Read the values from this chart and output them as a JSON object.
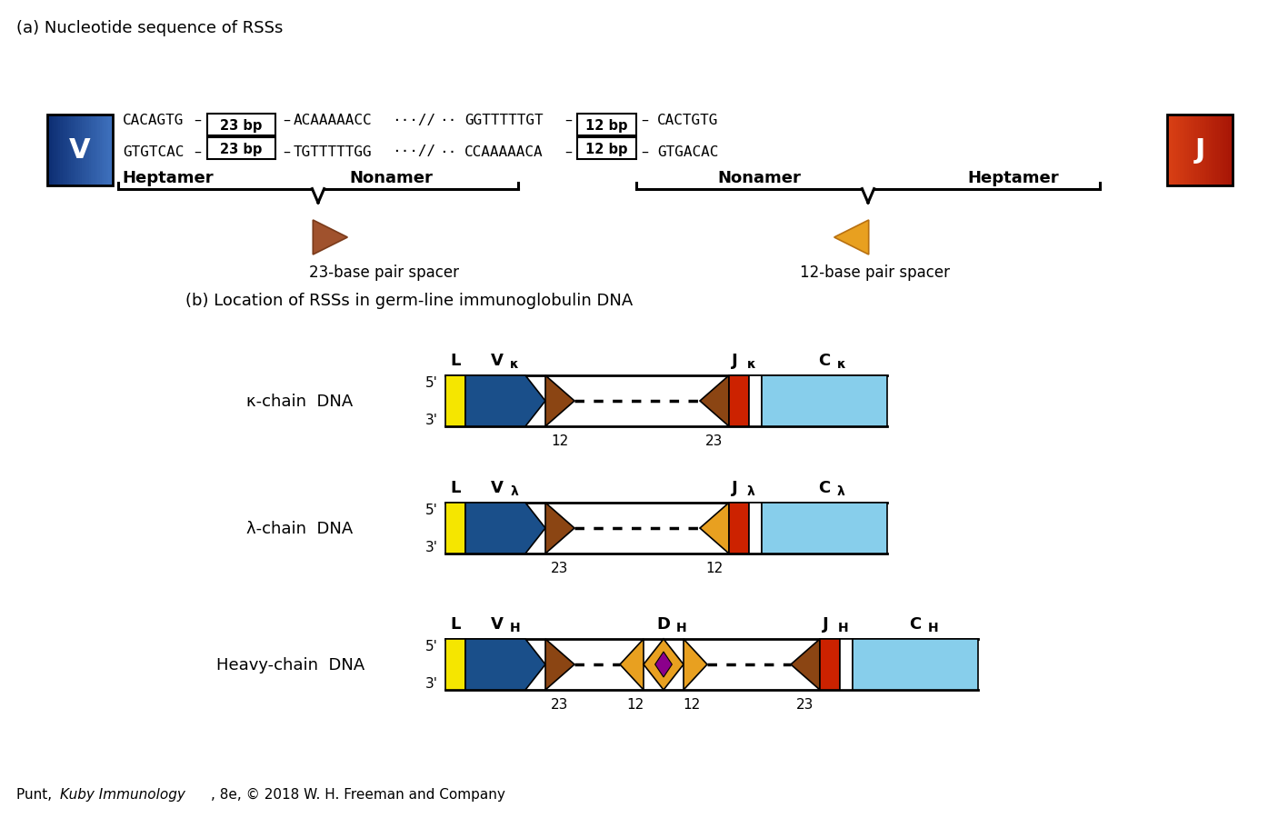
{
  "title_a": "(a) Nucleotide sequence of RSSs",
  "title_b": "(b) Location of RSSs in germ-line immunoglobulin DNA",
  "spacer23_label": "23-base pair spacer",
  "spacer12_label": "12-base pair spacer",
  "color_V_blue": "#1a4f8a",
  "color_J_red": "#cc2200",
  "color_yellow": "#f5e600",
  "color_blue": "#1a4f8a",
  "color_brown": "#8b4513",
  "color_orange": "#e8a020",
  "color_red": "#cc2200",
  "color_lightblue": "#87ceeb",
  "color_purple": "#8b008b",
  "bg_color": "#ffffff",
  "seq_fontsize": 11,
  "label_fontsize": 13,
  "title_fontsize": 13,
  "footer_fontsize": 11
}
